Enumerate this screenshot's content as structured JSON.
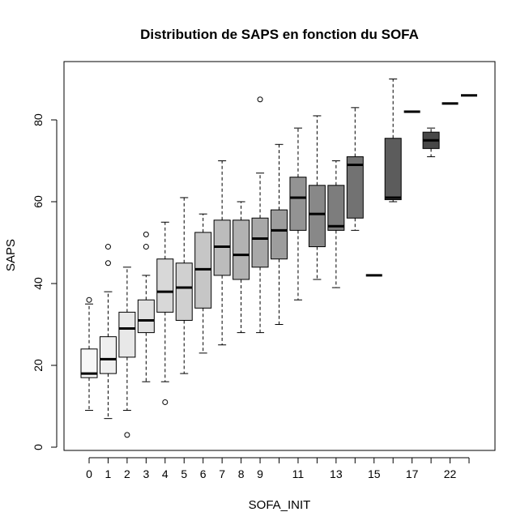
{
  "chart_data": {
    "type": "boxplot",
    "title": "Distribution de SAPS en fonction du SOFA",
    "xlabel": "SOFA_INIT",
    "ylabel": "SAPS",
    "ylim": [
      0,
      92
    ],
    "yticks": [
      0,
      20,
      40,
      60,
      80
    ],
    "xtick_labels_shown": [
      "0",
      "1",
      "2",
      "3",
      "4",
      "5",
      "6",
      "7",
      "8",
      "9",
      "11",
      "13",
      "15",
      "17",
      "22"
    ],
    "groups": [
      {
        "label": "0",
        "fill": "#f7f7f7",
        "min": 9,
        "q1": 17,
        "median": 18,
        "q3": 24,
        "max": 35,
        "outliers": [
          36
        ]
      },
      {
        "label": "1",
        "fill": "#efefef",
        "min": 7,
        "q1": 18,
        "median": 21.5,
        "q3": 27,
        "max": 38,
        "outliers": [
          45,
          49
        ]
      },
      {
        "label": "2",
        "fill": "#e8e8e8",
        "min": 9,
        "q1": 22,
        "median": 29,
        "q3": 33,
        "max": 44,
        "outliers": [
          3
        ]
      },
      {
        "label": "3",
        "fill": "#e0e0e0",
        "min": 16,
        "q1": 28,
        "median": 31,
        "q3": 36,
        "max": 42,
        "outliers": [
          49,
          52
        ]
      },
      {
        "label": "4",
        "fill": "#d8d8d8",
        "min": 16,
        "q1": 33,
        "median": 38,
        "q3": 46,
        "max": 55,
        "outliers": [
          11
        ]
      },
      {
        "label": "5",
        "fill": "#d0d0d0",
        "min": 18,
        "q1": 31,
        "median": 39,
        "q3": 45,
        "max": 61,
        "outliers": []
      },
      {
        "label": "6",
        "fill": "#c6c6c6",
        "min": 23,
        "q1": 34,
        "median": 43.5,
        "q3": 52.5,
        "max": 57,
        "outliers": []
      },
      {
        "label": "7",
        "fill": "#bcbcbc",
        "min": 25,
        "q1": 42,
        "median": 49,
        "q3": 55.5,
        "max": 70,
        "outliers": []
      },
      {
        "label": "8",
        "fill": "#b2b2b2",
        "min": 28,
        "q1": 41,
        "median": 47,
        "q3": 55.5,
        "max": 60,
        "outliers": []
      },
      {
        "label": "9",
        "fill": "#a8a8a8",
        "min": 28,
        "q1": 44,
        "median": 51,
        "q3": 56,
        "max": 67,
        "outliers": [
          85
        ]
      },
      {
        "label": "10",
        "fill": "#9d9d9d",
        "min": 30,
        "q1": 46,
        "median": 53,
        "q3": 58,
        "max": 74,
        "outliers": []
      },
      {
        "label": "11",
        "fill": "#939393",
        "min": 36,
        "q1": 53,
        "median": 61,
        "q3": 66,
        "max": 78,
        "outliers": []
      },
      {
        "label": "12",
        "fill": "#888888",
        "min": 41,
        "q1": 49,
        "median": 57,
        "q3": 64,
        "max": 81,
        "outliers": []
      },
      {
        "label": "13",
        "fill": "#7d7d7d",
        "min": 39,
        "q1": 53,
        "median": 54,
        "q3": 64,
        "max": 70,
        "outliers": []
      },
      {
        "label": "14",
        "fill": "#727272",
        "min": 53,
        "q1": 56,
        "median": 69,
        "q3": 71,
        "max": 83,
        "outliers": []
      },
      {
        "label": "15",
        "fill": "#676767",
        "min": 42,
        "q1": 42,
        "median": 42,
        "q3": 42,
        "max": 42,
        "outliers": []
      },
      {
        "label": "16",
        "fill": "#5c5c5c",
        "min": 60,
        "q1": 60.5,
        "median": 61,
        "q3": 75.5,
        "max": 90,
        "outliers": []
      },
      {
        "label": "17",
        "fill": "#515151",
        "min": 82,
        "q1": 82,
        "median": 82,
        "q3": 82,
        "max": 82,
        "outliers": []
      },
      {
        "label": "18",
        "fill": "#474747",
        "min": 71,
        "q1": 73,
        "median": 75,
        "q3": 77,
        "max": 78,
        "outliers": []
      },
      {
        "label": "22",
        "fill": "#3d3d3d",
        "min": 84,
        "q1": 84,
        "median": 84,
        "q3": 84,
        "max": 84,
        "outliers": []
      },
      {
        "label": "23",
        "fill": "#333333",
        "min": 86,
        "q1": 86,
        "median": 86,
        "q3": 86,
        "max": 86,
        "outliers": []
      }
    ]
  }
}
